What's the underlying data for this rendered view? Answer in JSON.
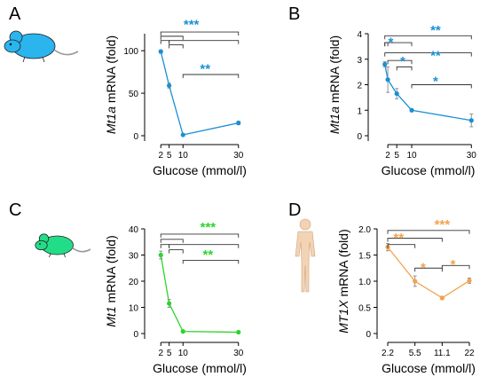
{
  "colors": {
    "A": "#1a8fd6",
    "B": "#1a8fd6",
    "C": "#2dd42d",
    "D": "#f4a24a",
    "axis": "#000000",
    "bracket": "#333333",
    "error": "#888888"
  },
  "chart_data": [
    {
      "panel_label": "A",
      "type": "line",
      "icon": "mouse-icon",
      "icon_color": "#2ab5ee",
      "xlabel": "Glucose (mmol/l)",
      "ylabel_gene": "Mt1a",
      "ylabel_rest": " mRNA (fold)",
      "ylabel_italic_gene": true,
      "x": [
        2,
        5,
        10,
        30
      ],
      "x_ticks": [
        "2",
        "5",
        "10",
        "30"
      ],
      "x_scale": "linear",
      "xlim": [
        0,
        32
      ],
      "ylim": [
        0,
        120
      ],
      "y_ticks": [
        0,
        50,
        100
      ],
      "series": [
        {
          "values": [
            99,
            59,
            1,
            15
          ],
          "errors": [
            2,
            3,
            1,
            2
          ]
        }
      ],
      "annotations": [
        {
          "text": "***",
          "x": 13,
          "y": 132,
          "size": 15
        },
        {
          "text": "**",
          "x": 18,
          "y": 80,
          "size": 15
        }
      ]
    },
    {
      "panel_label": "B",
      "type": "line",
      "icon": "",
      "xlabel": "Glucose (mmol/l)",
      "ylabel_gene": "Mt1a",
      "ylabel_rest": " mRNA (fold)",
      "ylabel_italic_gene": true,
      "x": [
        1,
        2,
        5,
        10,
        30
      ],
      "x_ticks": [
        "2",
        "5",
        "10",
        "30"
      ],
      "x_tick_values": [
        2,
        5,
        10,
        30
      ],
      "x_scale": "linear",
      "xlim": [
        -1,
        32
      ],
      "ylim": [
        0,
        4
      ],
      "y_ticks": [
        0,
        1,
        2,
        3,
        4
      ],
      "series": [
        {
          "values": [
            2.8,
            2.2,
            1.65,
            1.0,
            0.6
          ],
          "errors": [
            0.1,
            0.5,
            0.2,
            0.05,
            0.25
          ]
        }
      ],
      "annotations": [
        {
          "text": "**",
          "x": 18,
          "y": 4.18,
          "size": 15
        },
        {
          "text": "*",
          "x": 3,
          "y": 3.7,
          "size": 15
        },
        {
          "text": "**",
          "x": 18,
          "y": 3.18,
          "size": 15
        },
        {
          "text": "*",
          "x": 7,
          "y": 2.95,
          "size": 15
        },
        {
          "text": "*",
          "x": 18,
          "y": 2.18,
          "size": 15
        }
      ]
    },
    {
      "panel_label": "C",
      "type": "line",
      "icon": "mouse-icon",
      "icon_color": "#22dd88",
      "xlabel": "Glucose (mmol/l)",
      "ylabel_gene": "Mt1",
      "ylabel_rest": " mRNA (fold)",
      "ylabel_italic_gene": true,
      "x": [
        2,
        5,
        10,
        30
      ],
      "x_ticks": [
        "2",
        "5",
        "10",
        "30"
      ],
      "x_scale": "linear",
      "xlim": [
        0,
        32
      ],
      "ylim": [
        0,
        40
      ],
      "y_ticks": [
        0,
        10,
        20,
        30,
        40
      ],
      "series": [
        {
          "values": [
            30,
            11.5,
            0.8,
            0.5
          ],
          "errors": [
            1.5,
            1.5,
            0.3,
            0.3
          ]
        }
      ],
      "annotations": [
        {
          "text": "***",
          "x": 19,
          "y": 41,
          "size": 15
        },
        {
          "text": "**",
          "x": 19,
          "y": 30.5,
          "size": 15
        }
      ]
    },
    {
      "panel_label": "D",
      "type": "line",
      "icon": "human-icon",
      "icon_color": "#f4d3b4",
      "xlabel": "Glucose (mmol/l)",
      "ylabel_gene": "MT1X",
      "ylabel_rest": " mRNA (fold)",
      "ylabel_italic_gene": true,
      "x": [
        2.2,
        5.5,
        11.1,
        22
      ],
      "x_ticks": [
        "2.2",
        "5.5",
        "11.1",
        "22"
      ],
      "x_scale": "category",
      "ylim": [
        0,
        2.0
      ],
      "y_ticks": [
        0,
        0.5,
        1.0,
        1.5,
        2.0
      ],
      "y_tick_labels": [
        "0",
        "0.5",
        "1.0",
        "1.5",
        "2.0"
      ],
      "series": [
        {
          "values": [
            1.65,
            1.0,
            0.68,
            1.01
          ],
          "errors": [
            0.07,
            0.1,
            0.03,
            0.05
          ]
        }
      ],
      "annotations": [
        {
          "text": "***",
          "x": 2.0,
          "y": 2.1,
          "size": 15
        },
        {
          "text": "**",
          "x": 0.4,
          "y": 1.85,
          "size": 15
        },
        {
          "text": "*",
          "x": 1.3,
          "y": 1.28,
          "size": 15
        },
        {
          "text": "*",
          "x": 2.4,
          "y": 1.34,
          "size": 15
        }
      ]
    }
  ]
}
